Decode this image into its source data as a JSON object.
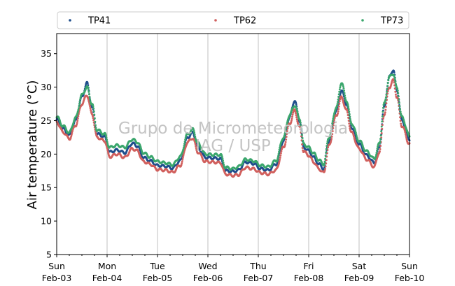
{
  "chart_data": {
    "type": "scatter",
    "ylabel": "Air temperature (°C)",
    "xlabel": "",
    "ylim": [
      5,
      38
    ],
    "yticks": [
      5,
      10,
      15,
      20,
      25,
      30,
      35
    ],
    "xlim_days": [
      0,
      7
    ],
    "xticks": [
      {
        "day": "Sun",
        "date": "Feb-03"
      },
      {
        "day": "Mon",
        "date": "Feb-04"
      },
      {
        "day": "Tue",
        "date": "Feb-05"
      },
      {
        "day": "Wed",
        "date": "Feb-06"
      },
      {
        "day": "Thu",
        "date": "Feb-07"
      },
      {
        "day": "Fri",
        "date": "Feb-08"
      },
      {
        "day": "Sat",
        "date": "Feb-09"
      },
      {
        "day": "Sun",
        "date": "Feb-10"
      }
    ],
    "grid": "vertical",
    "legend_position": "top",
    "watermark": [
      "Grupo de Micrometeorologia",
      "IAG / USP"
    ],
    "series": [
      {
        "name": "TP41",
        "color": "#1f4e8c",
        "points": [
          [
            0,
            25.2
          ],
          [
            0.125,
            23.8
          ],
          [
            0.25,
            22.8
          ],
          [
            0.375,
            25
          ],
          [
            0.5,
            28.5
          ],
          [
            0.6,
            30.6
          ],
          [
            0.7,
            27
          ],
          [
            0.8,
            23
          ],
          [
            0.95,
            22.6
          ],
          [
            1.05,
            20.3
          ],
          [
            1.2,
            20.6
          ],
          [
            1.35,
            20.2
          ],
          [
            1.5,
            21.6
          ],
          [
            1.6,
            21.2
          ],
          [
            1.72,
            19.5
          ],
          [
            1.85,
            19
          ],
          [
            2.0,
            18.3
          ],
          [
            2.15,
            18.2
          ],
          [
            2.3,
            17.9
          ],
          [
            2.45,
            19
          ],
          [
            2.6,
            22.5
          ],
          [
            2.7,
            23.2
          ],
          [
            2.8,
            21
          ],
          [
            2.95,
            19.5
          ],
          [
            3.1,
            19.4
          ],
          [
            3.25,
            19.3
          ],
          [
            3.35,
            17.5
          ],
          [
            3.5,
            17.4
          ],
          [
            3.6,
            17.6
          ],
          [
            3.75,
            18.8
          ],
          [
            3.9,
            18.6
          ],
          [
            4.05,
            17.8
          ],
          [
            4.2,
            17.6
          ],
          [
            4.35,
            18.5
          ],
          [
            4.5,
            22
          ],
          [
            4.62,
            25.5
          ],
          [
            4.72,
            28
          ],
          [
            4.82,
            25
          ],
          [
            4.9,
            21
          ],
          [
            5.0,
            20.5
          ],
          [
            5.1,
            19.5
          ],
          [
            5.2,
            18.5
          ],
          [
            5.3,
            17.8
          ],
          [
            5.4,
            22
          ],
          [
            5.55,
            26.5
          ],
          [
            5.65,
            29.5
          ],
          [
            5.75,
            27.5
          ],
          [
            5.85,
            24
          ],
          [
            6.0,
            21.5
          ],
          [
            6.15,
            19.8
          ],
          [
            6.3,
            18.7
          ],
          [
            6.4,
            21
          ],
          [
            6.5,
            27
          ],
          [
            6.6,
            31.5
          ],
          [
            6.68,
            32.6
          ],
          [
            6.75,
            29.5
          ],
          [
            6.85,
            25
          ],
          [
            7.0,
            22.2
          ]
        ]
      },
      {
        "name": "TP62",
        "color": "#d1605e",
        "points": [
          [
            0,
            24.8
          ],
          [
            0.125,
            23.3
          ],
          [
            0.25,
            22.3
          ],
          [
            0.375,
            24.3
          ],
          [
            0.5,
            27.5
          ],
          [
            0.6,
            28.8
          ],
          [
            0.7,
            26
          ],
          [
            0.8,
            22.5
          ],
          [
            0.95,
            22.0
          ],
          [
            1.05,
            19.6
          ],
          [
            1.2,
            20.0
          ],
          [
            1.35,
            19.5
          ],
          [
            1.5,
            20.8
          ],
          [
            1.6,
            20.5
          ],
          [
            1.72,
            18.9
          ],
          [
            1.85,
            18.5
          ],
          [
            2.0,
            17.7
          ],
          [
            2.15,
            17.6
          ],
          [
            2.3,
            17.3
          ],
          [
            2.45,
            18.3
          ],
          [
            2.6,
            21.8
          ],
          [
            2.7,
            22.4
          ],
          [
            2.8,
            20.3
          ],
          [
            2.95,
            18.9
          ],
          [
            3.1,
            18.8
          ],
          [
            3.25,
            18.7
          ],
          [
            3.35,
            17.0
          ],
          [
            3.5,
            16.8
          ],
          [
            3.6,
            16.9
          ],
          [
            3.75,
            18.0
          ],
          [
            3.9,
            17.8
          ],
          [
            4.05,
            17.2
          ],
          [
            4.2,
            17.0
          ],
          [
            4.35,
            17.6
          ],
          [
            4.5,
            21.0
          ],
          [
            4.62,
            24.5
          ],
          [
            4.72,
            26.5
          ],
          [
            4.82,
            24
          ],
          [
            4.9,
            20.4
          ],
          [
            5.0,
            19.8
          ],
          [
            5.1,
            18.8
          ],
          [
            5.2,
            17.8
          ],
          [
            5.3,
            17.2
          ],
          [
            5.4,
            21.2
          ],
          [
            5.55,
            25.8
          ],
          [
            5.65,
            28.5
          ],
          [
            5.75,
            26.5
          ],
          [
            5.85,
            23.2
          ],
          [
            6.0,
            20.8
          ],
          [
            6.15,
            19.2
          ],
          [
            6.3,
            18.1
          ],
          [
            6.4,
            20.3
          ],
          [
            6.5,
            26.0
          ],
          [
            6.6,
            30.0
          ],
          [
            6.68,
            31.0
          ],
          [
            6.75,
            28.5
          ],
          [
            6.85,
            24.2
          ],
          [
            7.0,
            21.5
          ]
        ]
      },
      {
        "name": "TP73",
        "color": "#3aa66c",
        "points": [
          [
            0,
            25.6
          ],
          [
            0.125,
            24.2
          ],
          [
            0.25,
            23.2
          ],
          [
            0.375,
            25.4
          ],
          [
            0.5,
            28.8
          ],
          [
            0.6,
            30.0
          ],
          [
            0.7,
            27.5
          ],
          [
            0.8,
            23.6
          ],
          [
            0.95,
            23.0
          ],
          [
            1.05,
            21.0
          ],
          [
            1.2,
            21.3
          ],
          [
            1.35,
            21.0
          ],
          [
            1.5,
            22.2
          ],
          [
            1.6,
            21.8
          ],
          [
            1.72,
            20.2
          ],
          [
            1.85,
            19.6
          ],
          [
            2.0,
            18.9
          ],
          [
            2.15,
            18.7
          ],
          [
            2.3,
            18.4
          ],
          [
            2.45,
            19.6
          ],
          [
            2.6,
            23.0
          ],
          [
            2.7,
            23.7
          ],
          [
            2.8,
            21.6
          ],
          [
            2.95,
            20.0
          ],
          [
            3.1,
            19.9
          ],
          [
            3.25,
            19.9
          ],
          [
            3.35,
            18.0
          ],
          [
            3.5,
            17.8
          ],
          [
            3.6,
            18.1
          ],
          [
            3.75,
            19.2
          ],
          [
            3.9,
            19.0
          ],
          [
            4.05,
            18.3
          ],
          [
            4.2,
            18.1
          ],
          [
            4.35,
            19.0
          ],
          [
            4.5,
            22.5
          ],
          [
            4.62,
            25.8
          ],
          [
            4.72,
            27.3
          ],
          [
            4.82,
            25.3
          ],
          [
            4.9,
            21.5
          ],
          [
            5.0,
            21.0
          ],
          [
            5.1,
            20.1
          ],
          [
            5.2,
            19.1
          ],
          [
            5.3,
            18.5
          ],
          [
            5.4,
            22.5
          ],
          [
            5.55,
            27.0
          ],
          [
            5.65,
            30.7
          ],
          [
            5.75,
            28.0
          ],
          [
            5.85,
            24.6
          ],
          [
            6.0,
            22.0
          ],
          [
            6.15,
            20.4
          ],
          [
            6.3,
            19.3
          ],
          [
            6.4,
            21.5
          ],
          [
            6.5,
            27.5
          ],
          [
            6.6,
            31.5
          ],
          [
            6.68,
            32.0
          ],
          [
            6.75,
            29.8
          ],
          [
            6.85,
            25.5
          ],
          [
            7.0,
            22.7
          ]
        ]
      }
    ]
  }
}
